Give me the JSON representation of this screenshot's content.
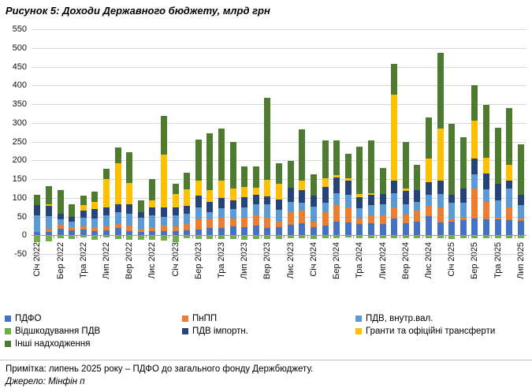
{
  "title": "Рисунок 5: Доходи Державного бюджету, млрд грн",
  "note": "Примітка: липень 2025 року – ПДФО до загального фонду Держбюджету.",
  "source": "Джерело: Мінфін п",
  "chart_data": {
    "type": "bar",
    "stacked": true,
    "title": "Рисунок 5: Доходи Державного бюджету, млрд грн",
    "xlabel": "",
    "ylabel": "",
    "ylim": [
      -50,
      550
    ],
    "ytick_step": 50,
    "grid": true,
    "legend_position": "bottom",
    "axis_color": "#9b9b9b",
    "gridline_color": "#d9d9d9",
    "categories": [
      "Січ 2022",
      "",
      "Бер 2022",
      "",
      "Тра 2022",
      "",
      "Лип 2022",
      "",
      "Вер 2022",
      "",
      "Лис 2022",
      "",
      "Січ 2023",
      "",
      "Бер 2023",
      "",
      "Тра 2023",
      "",
      "Лип 2023",
      "",
      "Вер 2023",
      "",
      "Лис 2023",
      "",
      "Січ 2024",
      "",
      "Бер 2024",
      "",
      "Тра 2024",
      "",
      "Лип 2024",
      "",
      "Вер 2024",
      "",
      "Лис 2024",
      "",
      "Січ 2025",
      "",
      "Бер 2025",
      "",
      "Тра 2025",
      "",
      "Лип 2025"
    ],
    "series": [
      {
        "name": "ПДФО",
        "color": "#4472C4",
        "values": [
          8,
          10,
          18,
          14,
          16,
          12,
          14,
          19,
          12,
          9,
          12,
          11,
          11,
          14,
          16,
          19,
          19,
          23,
          21,
          25,
          19,
          22,
          28,
          33,
          21,
          26,
          37,
          35,
          30,
          32,
          30,
          44,
          33,
          37,
          51,
          35,
          37,
          40,
          44,
          42,
          42,
          40,
          39
        ]
      },
      {
        "name": "ПнПП",
        "color": "#ED7D31",
        "values": [
          4,
          7,
          10,
          7,
          8,
          10,
          9,
          11,
          14,
          7,
          9,
          15,
          12,
          16,
          26,
          23,
          27,
          22,
          26,
          29,
          27,
          15,
          33,
          32,
          16,
          35,
          44,
          39,
          15,
          22,
          24,
          30,
          23,
          28,
          28,
          39,
          5,
          7,
          80,
          46,
          5,
          34,
          6
        ]
      },
      {
        "name": "ПДВ, внутр.вал.",
        "color": "#5B9BD5",
        "values": [
          41,
          34,
          14,
          16,
          23,
          23,
          31,
          31,
          32,
          30,
          32,
          23,
          31,
          28,
          32,
          19,
          27,
          25,
          27,
          28,
          36,
          30,
          28,
          21,
          40,
          25,
          32,
          34,
          28,
          27,
          28,
          39,
          26,
          24,
          28,
          36,
          44,
          39,
          39,
          35,
          46,
          50,
          35
        ]
      },
      {
        "name": "Відшкодування ПДВ",
        "color": "#70AD47",
        "values": [
          -18,
          -16,
          -7,
          -9,
          -6,
          -12,
          -5,
          -9,
          -12,
          -12,
          -12,
          -14,
          -19,
          -8,
          -10,
          -10,
          -10,
          -10,
          -12,
          -10,
          -10,
          -10,
          -8,
          -8,
          -10,
          -8,
          -8,
          -6,
          -8,
          -8,
          -8,
          -8,
          -8,
          -8,
          -8,
          -8,
          -10,
          -8,
          -8,
          -8,
          -8,
          -8,
          -8
        ]
      },
      {
        "name": "ПДВ імпортн.",
        "color": "#264478",
        "values": [
          27,
          28,
          16,
          12,
          19,
          25,
          20,
          21,
          24,
          15,
          21,
          25,
          20,
          21,
          32,
          27,
          26,
          23,
          27,
          25,
          21,
          28,
          37,
          35,
          28,
          42,
          42,
          38,
          28,
          27,
          28,
          33,
          37,
          32,
          35,
          35,
          21,
          38,
          42,
          42,
          44,
          21,
          28
        ]
      },
      {
        "name": "Гранти та офіційні трансферти",
        "color": "#FFC000",
        "values": [
          0,
          4,
          0,
          0,
          14,
          19,
          75,
          111,
          58,
          0,
          20,
          142,
          35,
          44,
          39,
          32,
          46,
          31,
          28,
          19,
          44,
          42,
          0,
          24,
          0,
          24,
          5,
          6,
          8,
          4,
          0,
          229,
          5,
          0,
          63,
          139,
          0,
          0,
          101,
          42,
          0,
          42,
          0
        ]
      },
      {
        "name": "Інші надходження",
        "color": "#4E7B30",
        "values": [
          27,
          48,
          63,
          33,
          25,
          27,
          28,
          41,
          82,
          32,
          57,
          102,
          29,
          43,
          110,
          152,
          140,
          126,
          54,
          58,
          220,
          56,
          73,
          137,
          58,
          102,
          94,
          66,
          128,
          142,
          70,
          83,
          124,
          66,
          110,
          202,
          190,
          138,
          94,
          142,
          149,
          152,
          134
        ]
      }
    ]
  }
}
